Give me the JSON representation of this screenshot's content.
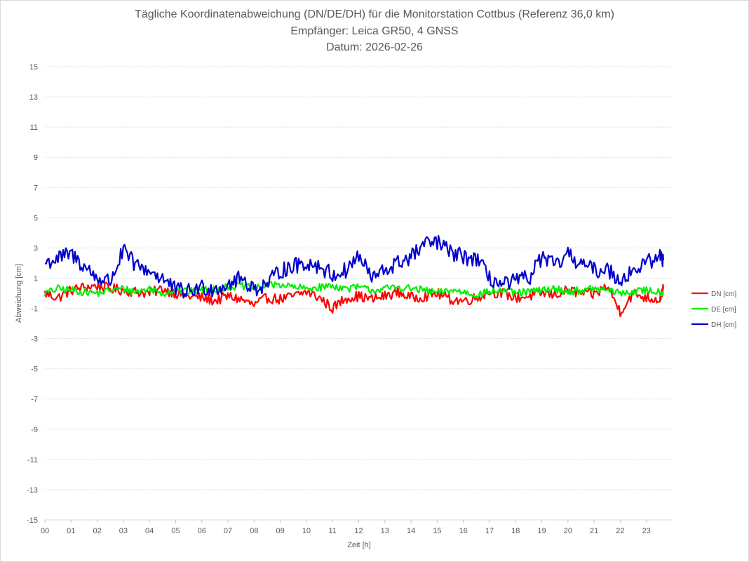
{
  "chart_data": {
    "type": "line",
    "title_lines": [
      "Tägliche Koordinatenabweichung (DN/DE/DH) für die Monitorstation Cottbus (Referenz 36,0 km)",
      "Empfänger: Leica GR50, 4 GNSS",
      "Datum: 2026-02-26"
    ],
    "xlabel": "Zeit [h]",
    "ylabel": "Abweichung [cm]",
    "xlim": [
      0,
      24
    ],
    "ylim": [
      -15,
      15
    ],
    "x_ticks": [
      "00",
      "01",
      "02",
      "03",
      "04",
      "05",
      "06",
      "07",
      "08",
      "09",
      "10",
      "11",
      "12",
      "13",
      "14",
      "15",
      "16",
      "17",
      "18",
      "19",
      "20",
      "21",
      "22",
      "23"
    ],
    "y_ticks": [
      "15",
      "13",
      "11",
      "9",
      "7",
      "5",
      "3",
      "1",
      "-1",
      "-3",
      "-5",
      "-7",
      "-9",
      "-11",
      "-13",
      "-15"
    ],
    "grid": true,
    "legend_position": "right",
    "series": [
      {
        "name": "DN [cm]",
        "color": "#ff0000",
        "x": [
          0.0,
          0.5,
          1.0,
          1.5,
          2.0,
          2.5,
          3.0,
          3.5,
          4.0,
          4.5,
          5.0,
          5.5,
          6.0,
          6.5,
          7.0,
          7.5,
          8.0,
          8.5,
          9.0,
          9.5,
          10.0,
          10.5,
          11.0,
          11.5,
          12.0,
          12.5,
          13.0,
          13.5,
          14.0,
          14.5,
          15.0,
          15.5,
          16.0,
          16.5,
          17.0,
          17.5,
          18.0,
          18.5,
          19.0,
          19.5,
          20.0,
          20.5,
          21.0,
          21.5,
          22.0,
          22.5,
          23.0,
          23.5,
          23.65
        ],
        "values": [
          0.0,
          -0.3,
          0.2,
          0.4,
          0.5,
          0.3,
          0.2,
          0.1,
          0.0,
          0.3,
          0.0,
          -0.2,
          -0.3,
          -0.5,
          -0.2,
          -0.4,
          -0.8,
          -0.3,
          -0.4,
          -0.2,
          0.1,
          -0.3,
          -1.0,
          -0.3,
          -0.2,
          -0.4,
          -0.2,
          0.1,
          -0.3,
          -0.2,
          0.0,
          -0.4,
          -0.5,
          -0.3,
          0.1,
          0.0,
          -0.3,
          -0.2,
          0.0,
          -0.1,
          0.2,
          0.0,
          -0.1,
          0.5,
          -1.2,
          0.0,
          -0.3,
          -0.4,
          0.3
        ]
      },
      {
        "name": "DE [cm]",
        "color": "#00ee00",
        "x": [
          0.0,
          0.5,
          1.0,
          1.5,
          2.0,
          2.5,
          3.0,
          3.5,
          4.0,
          4.5,
          5.0,
          5.5,
          6.0,
          6.5,
          7.0,
          7.5,
          8.0,
          8.5,
          9.0,
          9.5,
          10.0,
          10.5,
          11.0,
          11.5,
          12.0,
          12.5,
          13.0,
          13.5,
          14.0,
          14.5,
          15.0,
          15.5,
          16.0,
          16.5,
          17.0,
          17.5,
          18.0,
          18.5,
          19.0,
          19.5,
          20.0,
          20.5,
          21.0,
          21.5,
          22.0,
          22.5,
          23.0,
          23.5,
          23.65
        ],
        "values": [
          0.0,
          0.3,
          0.2,
          0.1,
          0.0,
          0.2,
          0.3,
          0.1,
          0.3,
          0.0,
          0.2,
          0.1,
          0.2,
          0.3,
          0.4,
          0.5,
          0.3,
          0.5,
          0.6,
          0.4,
          0.3,
          0.4,
          0.5,
          0.3,
          0.4,
          0.2,
          0.3,
          0.4,
          0.3,
          0.2,
          0.0,
          0.2,
          0.1,
          -0.1,
          0.1,
          0.2,
          0.0,
          0.1,
          0.2,
          0.3,
          0.1,
          0.2,
          0.3,
          0.2,
          0.0,
          0.1,
          0.2,
          0.1,
          0.0
        ]
      },
      {
        "name": "DH [cm]",
        "color": "#0000cc",
        "x": [
          0.0,
          0.5,
          1.0,
          1.5,
          2.0,
          2.5,
          3.0,
          3.5,
          4.0,
          4.5,
          5.0,
          5.5,
          6.0,
          6.5,
          7.0,
          7.5,
          8.0,
          8.5,
          9.0,
          9.5,
          10.0,
          10.5,
          11.0,
          11.5,
          12.0,
          12.5,
          13.0,
          13.5,
          14.0,
          14.5,
          15.0,
          15.5,
          16.0,
          16.5,
          17.0,
          17.5,
          18.0,
          18.5,
          19.0,
          19.5,
          20.0,
          20.5,
          21.0,
          21.5,
          22.0,
          22.5,
          23.0,
          23.5,
          23.65
        ],
        "values": [
          2.0,
          2.3,
          2.6,
          1.8,
          1.0,
          0.8,
          2.8,
          1.8,
          1.5,
          1.0,
          0.2,
          0.1,
          0.4,
          0.3,
          0.6,
          1.0,
          0.3,
          0.6,
          1.5,
          1.8,
          2.0,
          1.8,
          1.2,
          1.5,
          2.5,
          1.0,
          1.5,
          2.0,
          2.4,
          3.2,
          3.4,
          2.7,
          2.4,
          2.3,
          1.0,
          0.5,
          0.8,
          1.0,
          2.4,
          1.8,
          2.5,
          2.0,
          1.5,
          1.6,
          0.9,
          1.5,
          2.0,
          2.5,
          2.2
        ]
      }
    ]
  }
}
